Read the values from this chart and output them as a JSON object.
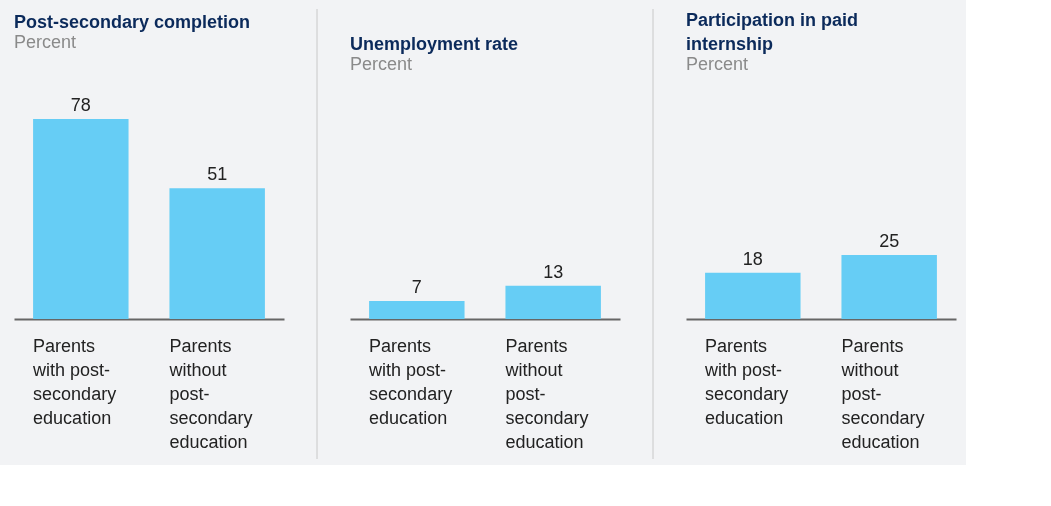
{
  "chart_data": [
    {
      "type": "bar",
      "title": "Post-secondary completion",
      "subtitle": "Percent",
      "categories": [
        "Parents with post-secondary education",
        "Parents without post-secondary education"
      ],
      "values": [
        78,
        51
      ],
      "color": "#66cdf5",
      "data_labels": true
    },
    {
      "type": "bar",
      "title": "Unemployment rate",
      "subtitle": "Percent",
      "categories": [
        "Parents with post-secondary education",
        "Parents without post-secondary education"
      ],
      "values": [
        7,
        13
      ],
      "color": "#66cdf5",
      "data_labels": true
    },
    {
      "type": "bar",
      "title": "Participation in paid internship",
      "subtitle": "Percent",
      "categories": [
        "Parents with post-secondary education",
        "Parents without post-secondary education"
      ],
      "values": [
        18,
        25
      ],
      "color": "#66cdf5",
      "data_labels": true
    }
  ]
}
